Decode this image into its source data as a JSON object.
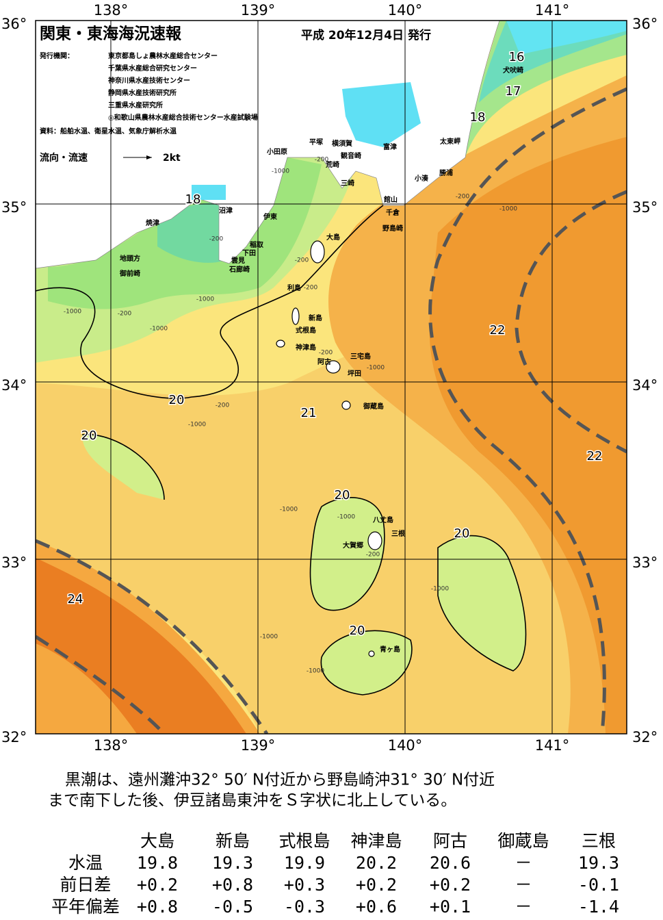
{
  "header": {
    "title": "関東・東海海況速報",
    "date": "平成 20年12月4日 発行",
    "issuer_label": "発行機関：",
    "issuers": [
      "東京都島しょ農林水産総合センター",
      "千葉県水産総合研究センター",
      "神奈川県水産技術センター",
      "静岡県水産技術研究所",
      "三重県水産研究所",
      "◎和歌山県農林水産総合技術センター水産試験場"
    ],
    "source": "資料：船舶水温、衛星水温、気象庁解析水温",
    "legend_label": "流向・流速",
    "legend_speed": "2kt"
  },
  "axes": {
    "lon": [
      "138°",
      "139°",
      "140°",
      "141°"
    ],
    "lat": [
      "36°",
      "35°",
      "34°",
      "33°",
      "32°"
    ]
  },
  "places": [
    "小田原",
    "平塚",
    "横須賀",
    "観音崎",
    "富津",
    "太東岬",
    "荒崎",
    "三崎",
    "勝浦",
    "小湊",
    "館山",
    "千倉",
    "野島崎",
    "沼津",
    "伊東",
    "稲取",
    "下田",
    "雲見",
    "石廊崎",
    "焼津",
    "地頭方",
    "御前崎",
    "大島",
    "利島",
    "新島",
    "式根島",
    "神津島",
    "三宅島",
    "阿古",
    "坪田",
    "御蔵島",
    "八丈島",
    "三根",
    "大賀郷",
    "青ヶ島",
    "犬吠崎"
  ],
  "contours": [
    "16",
    "17",
    "18",
    "18",
    "20",
    "21",
    "22",
    "22",
    "20",
    "20",
    "20",
    "24",
    "20"
  ],
  "depths": [
    "-200",
    "-1000",
    "-200",
    "-1000",
    "-200",
    "-1000",
    "-1000",
    "-200",
    "-1000",
    "-200",
    "-200",
    "-200",
    "-1000",
    "-1000",
    "-1000",
    "-200",
    "-1000",
    "-1000",
    "-1000",
    "-200",
    "-1000"
  ],
  "summary": [
    "黒潮は、遠州灘沖32° 50′ N付近から野島崎沖31° 30′ N付近",
    "まで南下した後、伊豆諸島東沖をＳ字状に北上している。"
  ],
  "table": {
    "columns": [
      "大島",
      "新島",
      "式根島",
      "神津島",
      "阿古",
      "御蔵島",
      "三根"
    ],
    "rows": [
      {
        "label": "水温",
        "cells": [
          "19.8",
          "19.3",
          "19.9",
          "20.2",
          "20.6",
          "－",
          "19.3"
        ]
      },
      {
        "label": "前日差",
        "cells": [
          "+0.2",
          "+0.8",
          "+0.3",
          "+0.2",
          "+0.2",
          "－",
          "-0.1"
        ]
      },
      {
        "label": "平年偏差",
        "cells": [
          "+0.8",
          "-0.5",
          "-0.3",
          "+0.6",
          "+0.1",
          "－",
          "-1.4"
        ]
      }
    ]
  }
}
